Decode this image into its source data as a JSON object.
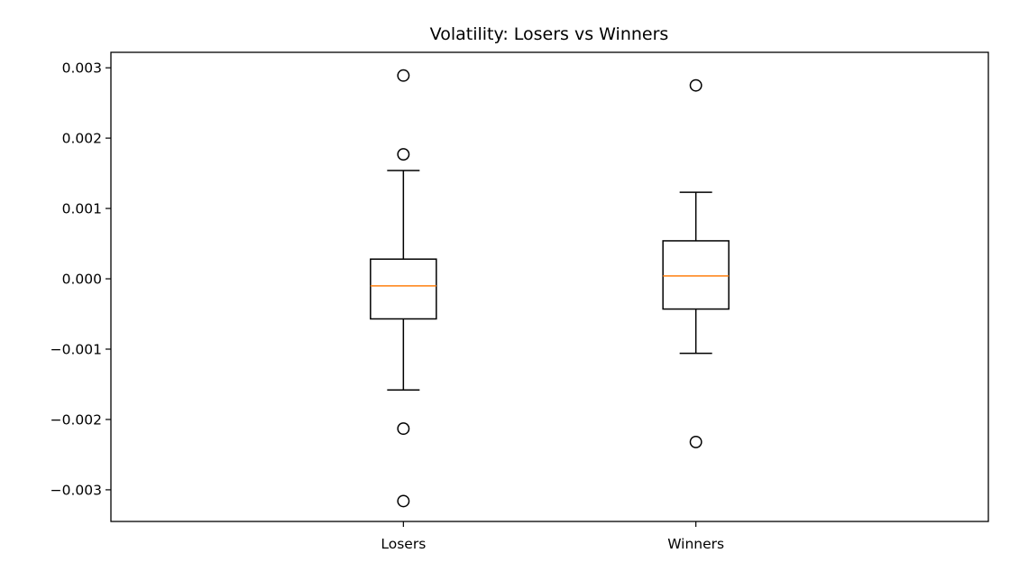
{
  "chart_data": {
    "type": "box",
    "title": "Volatility: Losers vs Winners",
    "xlabel": "",
    "ylabel": "",
    "categories": [
      "Losers",
      "Winners"
    ],
    "ylim": [
      -0.00345,
      0.00322
    ],
    "yticks": [
      -0.003,
      -0.002,
      -0.001,
      0.0,
      0.001,
      0.002,
      0.003
    ],
    "ytick_labels": [
      "−0.003",
      "−0.002",
      "−0.001",
      "0.000",
      "0.001",
      "0.002",
      "0.003"
    ],
    "grid": false,
    "boxes": [
      {
        "category": "Losers",
        "whisker_low": -0.00158,
        "q1": -0.00057,
        "median": -0.0001,
        "q3": 0.00028,
        "whisker_high": 0.00154,
        "outliers": [
          0.00289,
          0.00177,
          -0.00213,
          -0.00316
        ]
      },
      {
        "category": "Winners",
        "whisker_low": -0.00106,
        "q1": -0.00043,
        "median": 4e-05,
        "q3": 0.00054,
        "whisker_high": 0.00123,
        "outliers": [
          0.00275,
          -0.00232
        ]
      }
    ],
    "colors": {
      "box": "#000000",
      "median": "#ff7f0e",
      "outlier_edge": "#000000"
    }
  }
}
